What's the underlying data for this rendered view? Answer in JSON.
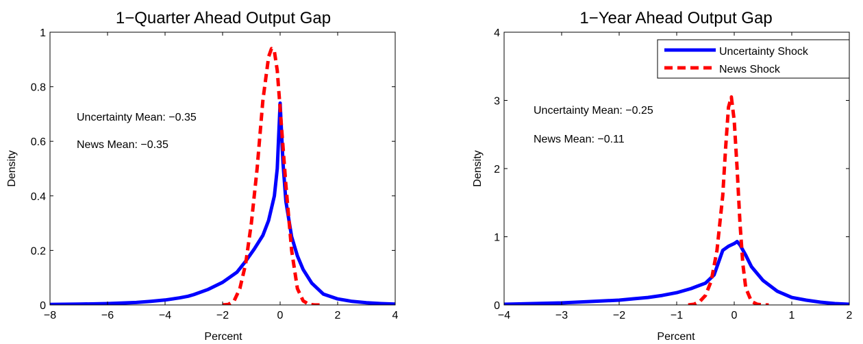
{
  "chart_data": [
    {
      "type": "line",
      "title": "1−Quarter Ahead Output Gap",
      "xlabel": "Percent",
      "ylabel": "Density",
      "xlim": [
        -8,
        4
      ],
      "ylim": [
        0,
        1
      ],
      "xticks": [
        -8,
        -6,
        -4,
        -2,
        0,
        2,
        4
      ],
      "yticks": [
        0,
        0.2,
        0.4,
        0.6,
        0.8,
        1
      ],
      "xtick_labels": [
        "−8",
        "−6",
        "−4",
        "−2",
        "0",
        "2",
        "4"
      ],
      "ytick_labels": [
        "0",
        "0.2",
        "0.4",
        "0.6",
        "0.8",
        "1"
      ],
      "grid": false,
      "annotations": [
        "Uncertainty Mean: −0.35",
        "News Mean: −0.35"
      ],
      "series": [
        {
          "color": "#0000ff",
          "style": "solid",
          "x": [
            -8,
            -7,
            -6,
            -5,
            -4.5,
            -4,
            -3.5,
            -3.2,
            -3,
            -2.5,
            -2,
            -1.5,
            -1.2,
            -0.9,
            -0.6,
            -0.4,
            -0.2,
            -0.1,
            0,
            0.1,
            0.2,
            0.4,
            0.6,
            0.8,
            1.1,
            1.5,
            2,
            2.5,
            3,
            3.5,
            4
          ],
          "y": [
            0.002,
            0.003,
            0.005,
            0.009,
            0.013,
            0.018,
            0.026,
            0.032,
            0.038,
            0.057,
            0.083,
            0.12,
            0.16,
            0.205,
            0.255,
            0.31,
            0.4,
            0.5,
            0.74,
            0.52,
            0.38,
            0.25,
            0.18,
            0.13,
            0.08,
            0.04,
            0.022,
            0.013,
            0.008,
            0.005,
            0.003
          ]
        },
        {
          "color": "#ff0000",
          "style": "dashed",
          "x": [
            -2,
            -1.8,
            -1.6,
            -1.4,
            -1.2,
            -1,
            -0.8,
            -0.6,
            -0.4,
            -0.3,
            -0.2,
            -0.1,
            0,
            0.1,
            0.2,
            0.4,
            0.6,
            0.8,
            1,
            1.2,
            1.4
          ],
          "y": [
            0,
            0.002,
            0.015,
            0.06,
            0.15,
            0.3,
            0.5,
            0.75,
            0.91,
            0.94,
            0.93,
            0.86,
            0.72,
            0.58,
            0.44,
            0.2,
            0.06,
            0.015,
            0.002,
            0,
            0
          ]
        }
      ]
    },
    {
      "type": "line",
      "title": "1−Year Ahead Output Gap",
      "xlabel": "Percent",
      "ylabel": "Density",
      "xlim": [
        -4,
        2
      ],
      "ylim": [
        0,
        4
      ],
      "xticks": [
        -4,
        -3,
        -2,
        -1,
        0,
        1,
        2
      ],
      "yticks": [
        0,
        1,
        2,
        3,
        4
      ],
      "xtick_labels": [
        "−4",
        "−3",
        "−2",
        "−1",
        "0",
        "1",
        "2"
      ],
      "ytick_labels": [
        "0",
        "1",
        "2",
        "3",
        "4"
      ],
      "grid": false,
      "legend_position": "top-right",
      "annotations": [
        "Uncertainty Mean: −0.25",
        "News Mean: −0.11"
      ],
      "series": [
        {
          "name": "Uncertainty Shock",
          "color": "#0000ff",
          "style": "solid",
          "x": [
            -4,
            -3.5,
            -3,
            -2.5,
            -2,
            -1.75,
            -1.5,
            -1.25,
            -1,
            -0.75,
            -0.5,
            -0.35,
            -0.2,
            -0.1,
            0,
            0.05,
            0.1,
            0.2,
            0.3,
            0.5,
            0.75,
            1,
            1.25,
            1.5,
            1.75,
            2
          ],
          "y": [
            0.01,
            0.02,
            0.03,
            0.05,
            0.07,
            0.09,
            0.11,
            0.14,
            0.18,
            0.24,
            0.32,
            0.44,
            0.8,
            0.86,
            0.9,
            0.93,
            0.88,
            0.73,
            0.56,
            0.36,
            0.2,
            0.11,
            0.07,
            0.04,
            0.02,
            0.01
          ]
        },
        {
          "name": "News Shock",
          "color": "#ff0000",
          "style": "dashed",
          "x": [
            -0.8,
            -0.7,
            -0.6,
            -0.5,
            -0.4,
            -0.3,
            -0.2,
            -0.15,
            -0.1,
            -0.05,
            0,
            0.05,
            0.1,
            0.15,
            0.2,
            0.3,
            0.4,
            0.5,
            0.6
          ],
          "y": [
            0,
            0.01,
            0.05,
            0.14,
            0.35,
            0.8,
            1.6,
            2.3,
            2.9,
            3.05,
            2.7,
            2.0,
            1.2,
            0.6,
            0.25,
            0.05,
            0.01,
            0,
            0
          ]
        }
      ]
    }
  ]
}
